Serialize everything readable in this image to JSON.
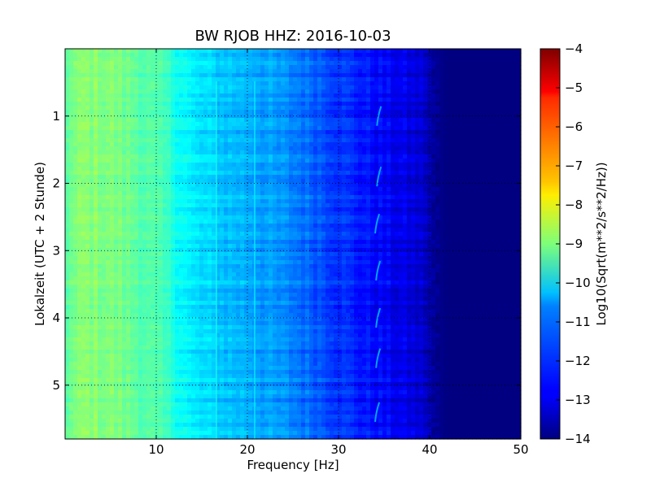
{
  "chart_data": {
    "type": "heatmap",
    "title": "BW RJOB HHZ: 2016-10-03",
    "xlabel": "Frequency [Hz]",
    "ylabel": "Lokalzeit (UTC + 2 Stunde)",
    "xlim": [
      0,
      50
    ],
    "ylim": [
      0,
      5.8
    ],
    "y_inverted": true,
    "x_ticks": [
      10,
      20,
      30,
      40,
      50
    ],
    "x_tick_labels": [
      "10",
      "20",
      "30",
      "40",
      "50"
    ],
    "y_ticks": [
      1,
      2,
      3,
      4,
      5
    ],
    "y_tick_labels": [
      "1",
      "2",
      "3",
      "4",
      "5"
    ],
    "grid": true,
    "colormap": "jet",
    "colorbar": {
      "label": "Log10(Sqrt(m**2/s**2/Hz))",
      "min": -14,
      "max": -4,
      "ticks": [
        -14,
        -13,
        -12,
        -11,
        -10,
        -9,
        -8,
        -7,
        -6,
        -5,
        -4
      ],
      "tick_labels": [
        "−14",
        "−13",
        "−12",
        "−11",
        "−10",
        "−9",
        "−8",
        "−7",
        "−6",
        "−5",
        "−4"
      ]
    },
    "spectrum_profile": {
      "frequency_hz": [
        0,
        2,
        5,
        8,
        11,
        13,
        14,
        17,
        20,
        22,
        25,
        28,
        30,
        33,
        36,
        38,
        39.5,
        40.5,
        42,
        50
      ],
      "log10_amplitude": [
        -9.3,
        -8.9,
        -9.0,
        -9.3,
        -9.7,
        -10.2,
        -10.5,
        -10.8,
        -11.0,
        -11.2,
        -11.5,
        -11.9,
        -12.2,
        -12.6,
        -12.9,
        -13.1,
        -13.3,
        -13.8,
        -14.0,
        -14.0
      ]
    },
    "annotations_peaks": [
      {
        "frequency_hz": 34.4,
        "time_h": 1.0
      },
      {
        "frequency_hz": 34.4,
        "time_h": 1.9
      },
      {
        "frequency_hz": 34.2,
        "time_h": 2.6
      },
      {
        "frequency_hz": 34.3,
        "time_h": 3.3
      },
      {
        "frequency_hz": 34.3,
        "time_h": 4.0
      },
      {
        "frequency_hz": 34.3,
        "time_h": 4.6
      },
      {
        "frequency_hz": 34.2,
        "time_h": 5.4
      }
    ]
  }
}
